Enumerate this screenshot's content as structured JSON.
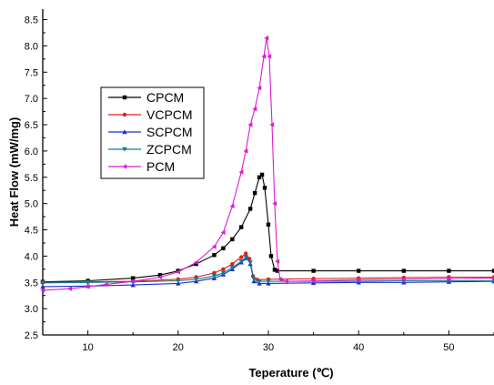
{
  "chart_data": {
    "type": "line",
    "title": "",
    "xlabel": "Teperature (℃)",
    "ylabel": "Heat Flow (mW/mg)",
    "xlim": [
      5,
      55
    ],
    "ylim": [
      2.5,
      8.7
    ],
    "x_ticks": [
      10,
      20,
      30,
      40,
      50
    ],
    "x_tick_labels": [
      "10",
      "20",
      "30",
      "40",
      "50"
    ],
    "y_ticks": [
      2.5,
      3.0,
      3.5,
      4.0,
      4.5,
      5.0,
      5.5,
      6.0,
      6.5,
      7.0,
      7.5,
      8.0,
      8.5
    ],
    "y_tick_labels": [
      "2.5",
      "3.0",
      "3.5",
      "4.0",
      "4.5",
      "5.0",
      "5.5",
      "6.0",
      "6.5",
      "7.0",
      "7.5",
      "8.0",
      "8.5"
    ],
    "grid": false,
    "legend_position": "upper-left",
    "series": [
      {
        "name": "CPCM",
        "color": "#000000",
        "marker": "square",
        "points": [
          [
            5,
            3.51
          ],
          [
            10,
            3.53
          ],
          [
            15,
            3.58
          ],
          [
            18,
            3.64
          ],
          [
            20,
            3.72
          ],
          [
            22,
            3.85
          ],
          [
            24,
            4.02
          ],
          [
            25,
            4.15
          ],
          [
            26,
            4.32
          ],
          [
            27,
            4.55
          ],
          [
            28,
            4.9
          ],
          [
            28.5,
            5.2
          ],
          [
            29,
            5.5
          ],
          [
            29.3,
            5.55
          ],
          [
            29.6,
            5.3
          ],
          [
            30,
            4.6
          ],
          [
            30.3,
            4.0
          ],
          [
            30.7,
            3.74
          ],
          [
            31,
            3.72
          ],
          [
            35,
            3.72
          ],
          [
            40,
            3.72
          ],
          [
            45,
            3.72
          ],
          [
            50,
            3.72
          ],
          [
            55,
            3.72
          ]
        ]
      },
      {
        "name": "VCPCM",
        "color": "#e0201b",
        "marker": "circle",
        "points": [
          [
            5,
            3.5
          ],
          [
            10,
            3.51
          ],
          [
            15,
            3.52
          ],
          [
            20,
            3.56
          ],
          [
            22,
            3.6
          ],
          [
            24,
            3.68
          ],
          [
            25,
            3.75
          ],
          [
            26,
            3.85
          ],
          [
            27,
            3.98
          ],
          [
            27.5,
            4.05
          ],
          [
            27.9,
            3.95
          ],
          [
            28.3,
            3.62
          ],
          [
            28.8,
            3.55
          ],
          [
            30,
            3.56
          ],
          [
            35,
            3.57
          ],
          [
            40,
            3.58
          ],
          [
            45,
            3.59
          ],
          [
            50,
            3.6
          ],
          [
            55,
            3.6
          ]
        ]
      },
      {
        "name": "SCPCM",
        "color": "#1c2fcb",
        "marker": "triangle-up",
        "points": [
          [
            5,
            3.42
          ],
          [
            10,
            3.43
          ],
          [
            15,
            3.45
          ],
          [
            20,
            3.48
          ],
          [
            22,
            3.52
          ],
          [
            24,
            3.58
          ],
          [
            25,
            3.65
          ],
          [
            26,
            3.75
          ],
          [
            27,
            3.88
          ],
          [
            27.6,
            3.96
          ],
          [
            28,
            3.85
          ],
          [
            28.4,
            3.52
          ],
          [
            29,
            3.48
          ],
          [
            30,
            3.48
          ],
          [
            35,
            3.49
          ],
          [
            40,
            3.5
          ],
          [
            45,
            3.5
          ],
          [
            50,
            3.51
          ],
          [
            55,
            3.52
          ]
        ]
      },
      {
        "name": "ZCPCM",
        "color": "#117e8c",
        "marker": "triangle-down",
        "points": [
          [
            5,
            3.49
          ],
          [
            10,
            3.5
          ],
          [
            15,
            3.51
          ],
          [
            20,
            3.53
          ],
          [
            22,
            3.56
          ],
          [
            24,
            3.62
          ],
          [
            25,
            3.68
          ],
          [
            26,
            3.78
          ],
          [
            27,
            3.9
          ],
          [
            27.5,
            3.98
          ],
          [
            28,
            3.88
          ],
          [
            28.4,
            3.56
          ],
          [
            29,
            3.52
          ],
          [
            30,
            3.52
          ],
          [
            35,
            3.52
          ],
          [
            40,
            3.52
          ],
          [
            45,
            3.53
          ],
          [
            50,
            3.53
          ],
          [
            55,
            3.53
          ]
        ]
      },
      {
        "name": "PCM",
        "color": "#e01ad2",
        "marker": "triangle-left",
        "points": [
          [
            5,
            3.35
          ],
          [
            8,
            3.38
          ],
          [
            10,
            3.42
          ],
          [
            12,
            3.46
          ],
          [
            15,
            3.52
          ],
          [
            18,
            3.6
          ],
          [
            20,
            3.7
          ],
          [
            22,
            3.88
          ],
          [
            24,
            4.18
          ],
          [
            25,
            4.45
          ],
          [
            26,
            4.95
          ],
          [
            27,
            5.6
          ],
          [
            27.5,
            6.0
          ],
          [
            28,
            6.5
          ],
          [
            28.5,
            6.8
          ],
          [
            29,
            7.2
          ],
          [
            29.5,
            7.8
          ],
          [
            29.8,
            8.15
          ],
          [
            30.1,
            7.8
          ],
          [
            30.4,
            6.5
          ],
          [
            30.7,
            5.0
          ],
          [
            31,
            3.9
          ],
          [
            31.3,
            3.56
          ],
          [
            32,
            3.52
          ],
          [
            35,
            3.53
          ],
          [
            40,
            3.55
          ],
          [
            45,
            3.56
          ],
          [
            50,
            3.57
          ],
          [
            55,
            3.58
          ]
        ]
      }
    ]
  }
}
